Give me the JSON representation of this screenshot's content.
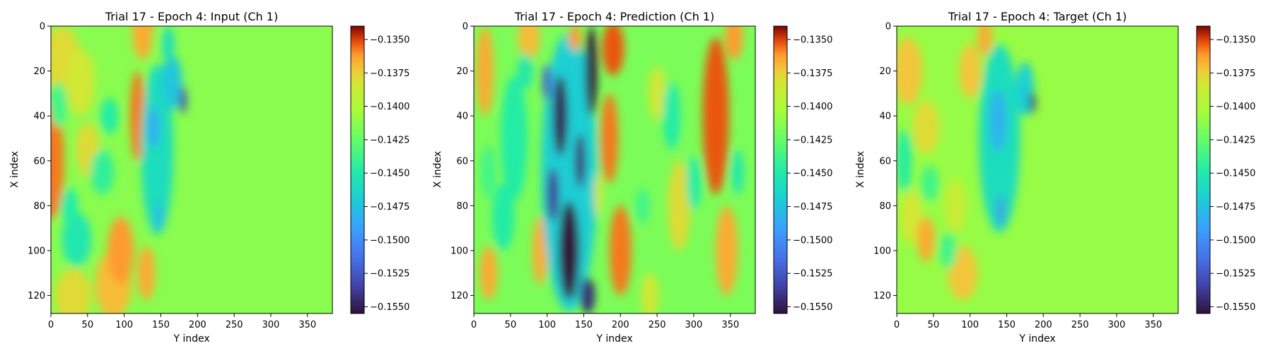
{
  "chart_data": [
    {
      "type": "heatmap",
      "title": "Trial 17 - Epoch 4: Input (Ch 1)",
      "xlabel": "Y index",
      "ylabel": "X index",
      "xticks": [
        0,
        50,
        100,
        150,
        200,
        250,
        300,
        350
      ],
      "yticks": [
        0,
        20,
        40,
        60,
        80,
        100,
        120
      ],
      "xlim": [
        0,
        384
      ],
      "ylim": [
        128,
        0
      ],
      "colormap": "turbo",
      "colorbar": {
        "ticks": [
          "−0.1350",
          "−0.1375",
          "−0.1400",
          "−0.1425",
          "−0.1450",
          "−0.1475",
          "−0.1500",
          "−0.1525",
          "−0.1550"
        ],
        "range": [
          -0.1555,
          -0.134
        ]
      },
      "background_level": 0.34,
      "features": [
        {
          "x": 0,
          "y": 60,
          "rx": 18,
          "ry": 26,
          "level": 0.08
        },
        {
          "x": 15,
          "y": 15,
          "rx": 25,
          "ry": 15,
          "level": 0.18
        },
        {
          "x": 40,
          "y": 25,
          "rx": 20,
          "ry": 15,
          "level": 0.2
        },
        {
          "x": 50,
          "y": 55,
          "rx": 16,
          "ry": 12,
          "level": 0.18
        },
        {
          "x": 30,
          "y": 120,
          "rx": 25,
          "ry": 12,
          "level": 0.18
        },
        {
          "x": 85,
          "y": 115,
          "rx": 25,
          "ry": 15,
          "level": 0.14
        },
        {
          "x": 95,
          "y": 100,
          "rx": 18,
          "ry": 15,
          "level": 0.1
        },
        {
          "x": 118,
          "y": 40,
          "rx": 10,
          "ry": 20,
          "level": 0.08
        },
        {
          "x": 125,
          "y": 0,
          "rx": 14,
          "ry": 15,
          "level": 0.12
        },
        {
          "x": 130,
          "y": 110,
          "rx": 12,
          "ry": 12,
          "level": 0.12
        },
        {
          "x": 35,
          "y": 95,
          "rx": 20,
          "ry": 12,
          "level": 0.52
        },
        {
          "x": 25,
          "y": 80,
          "rx": 12,
          "ry": 8,
          "level": 0.5
        },
        {
          "x": 70,
          "y": 65,
          "rx": 16,
          "ry": 10,
          "level": 0.48
        },
        {
          "x": 80,
          "y": 40,
          "rx": 12,
          "ry": 8,
          "level": 0.5
        },
        {
          "x": 10,
          "y": 35,
          "rx": 12,
          "ry": 10,
          "level": 0.45
        },
        {
          "x": 145,
          "y": 55,
          "rx": 22,
          "ry": 38,
          "level": 0.55
        },
        {
          "x": 140,
          "y": 45,
          "rx": 8,
          "ry": 9,
          "level": 0.68
        },
        {
          "x": 165,
          "y": 25,
          "rx": 14,
          "ry": 12,
          "level": 0.62
        },
        {
          "x": 160,
          "y": 8,
          "rx": 8,
          "ry": 8,
          "level": 0.55
        },
        {
          "x": 180,
          "y": 33,
          "rx": 5,
          "ry": 6,
          "level": 0.88
        },
        {
          "x": 148,
          "y": 85,
          "rx": 4,
          "ry": 6,
          "level": 0.68
        }
      ]
    },
    {
      "type": "heatmap",
      "title": "Trial 17 - Epoch 4: Prediction (Ch 1)",
      "xlabel": "Y index",
      "ylabel": "X index",
      "xticks": [
        0,
        50,
        100,
        150,
        200,
        250,
        300,
        350
      ],
      "yticks": [
        0,
        20,
        40,
        60,
        80,
        100,
        120
      ],
      "xlim": [
        0,
        384
      ],
      "ylim": [
        128,
        0
      ],
      "colormap": "turbo",
      "colorbar": {
        "ticks": [
          "−0.1350",
          "−0.1375",
          "−0.1400",
          "−0.1425",
          "−0.1450",
          "−0.1475",
          "−0.1500",
          "−0.1525",
          "−0.1550"
        ],
        "range": [
          -0.1555,
          -0.134
        ]
      },
      "background_level": 0.36,
      "features": [
        {
          "x": 190,
          "y": 10,
          "rx": 15,
          "ry": 12,
          "level": 0.06
        },
        {
          "x": 185,
          "y": 50,
          "rx": 12,
          "ry": 20,
          "level": 0.08
        },
        {
          "x": 200,
          "y": 100,
          "rx": 15,
          "ry": 20,
          "level": 0.08
        },
        {
          "x": 15,
          "y": 20,
          "rx": 12,
          "ry": 20,
          "level": 0.12
        },
        {
          "x": 20,
          "y": 110,
          "rx": 12,
          "ry": 12,
          "level": 0.12
        },
        {
          "x": 75,
          "y": 5,
          "rx": 15,
          "ry": 10,
          "level": 0.14
        },
        {
          "x": 90,
          "y": 100,
          "rx": 10,
          "ry": 15,
          "level": 0.12
        },
        {
          "x": 330,
          "y": 40,
          "rx": 18,
          "ry": 35,
          "level": 0.06
        },
        {
          "x": 345,
          "y": 100,
          "rx": 15,
          "ry": 20,
          "level": 0.12
        },
        {
          "x": 355,
          "y": 5,
          "rx": 12,
          "ry": 10,
          "level": 0.1
        },
        {
          "x": 280,
          "y": 80,
          "rx": 15,
          "ry": 20,
          "level": 0.18
        },
        {
          "x": 250,
          "y": 30,
          "rx": 12,
          "ry": 12,
          "level": 0.2
        },
        {
          "x": 240,
          "y": 120,
          "rx": 12,
          "ry": 10,
          "level": 0.2
        },
        {
          "x": 270,
          "y": 40,
          "rx": 12,
          "ry": 15,
          "level": 0.5
        },
        {
          "x": 300,
          "y": 70,
          "rx": 10,
          "ry": 12,
          "level": 0.5
        },
        {
          "x": 230,
          "y": 80,
          "rx": 10,
          "ry": 8,
          "level": 0.45
        },
        {
          "x": 360,
          "y": 65,
          "rx": 8,
          "ry": 10,
          "level": 0.52
        },
        {
          "x": 55,
          "y": 50,
          "rx": 18,
          "ry": 28,
          "level": 0.5
        },
        {
          "x": 40,
          "y": 85,
          "rx": 15,
          "ry": 15,
          "level": 0.5
        },
        {
          "x": 70,
          "y": 20,
          "rx": 10,
          "ry": 8,
          "level": 0.52
        },
        {
          "x": 20,
          "y": 65,
          "rx": 10,
          "ry": 12,
          "level": 0.45
        },
        {
          "x": 130,
          "y": 65,
          "rx": 38,
          "ry": 62,
          "level": 0.6
        },
        {
          "x": 118,
          "y": 40,
          "rx": 10,
          "ry": 18,
          "level": 0.98
        },
        {
          "x": 130,
          "y": 100,
          "rx": 14,
          "ry": 22,
          "level": 1.0
        },
        {
          "x": 160,
          "y": 20,
          "rx": 8,
          "ry": 20,
          "level": 1.0
        },
        {
          "x": 145,
          "y": 60,
          "rx": 7,
          "ry": 12,
          "level": 0.95
        },
        {
          "x": 108,
          "y": 75,
          "rx": 8,
          "ry": 12,
          "level": 0.92
        },
        {
          "x": 155,
          "y": 120,
          "rx": 10,
          "ry": 8,
          "level": 0.95
        },
        {
          "x": 100,
          "y": 25,
          "rx": 6,
          "ry": 8,
          "level": 0.85
        },
        {
          "x": 170,
          "y": 75,
          "rx": 6,
          "ry": 10,
          "level": 0.2
        },
        {
          "x": 138,
          "y": 5,
          "rx": 8,
          "ry": 6,
          "level": 0.1
        }
      ]
    },
    {
      "type": "heatmap",
      "title": "Trial 17 - Epoch 4: Target (Ch 1)",
      "xlabel": "Y index",
      "ylabel": "X index",
      "xticks": [
        0,
        50,
        100,
        150,
        200,
        250,
        300,
        350
      ],
      "yticks": [
        0,
        20,
        40,
        60,
        80,
        100,
        120
      ],
      "xlim": [
        0,
        384
      ],
      "ylim": [
        128,
        0
      ],
      "colormap": "turbo",
      "colorbar": {
        "ticks": [
          "−0.1350",
          "−0.1375",
          "−0.1400",
          "−0.1425",
          "−0.1450",
          "−0.1475",
          "−0.1500",
          "−0.1525",
          "−0.1550"
        ],
        "range": [
          -0.1555,
          -0.134
        ]
      },
      "background_level": 0.32,
      "features": [
        {
          "x": 15,
          "y": 20,
          "rx": 20,
          "ry": 15,
          "level": 0.15
        },
        {
          "x": 40,
          "y": 45,
          "rx": 18,
          "ry": 12,
          "level": 0.18
        },
        {
          "x": 20,
          "y": 85,
          "rx": 15,
          "ry": 12,
          "level": 0.2
        },
        {
          "x": 40,
          "y": 95,
          "rx": 12,
          "ry": 10,
          "level": 0.12
        },
        {
          "x": 90,
          "y": 110,
          "rx": 20,
          "ry": 12,
          "level": 0.15
        },
        {
          "x": 100,
          "y": 20,
          "rx": 15,
          "ry": 12,
          "level": 0.15
        },
        {
          "x": 80,
          "y": 80,
          "rx": 15,
          "ry": 12,
          "level": 0.22
        },
        {
          "x": 120,
          "y": 5,
          "rx": 10,
          "ry": 8,
          "level": 0.12
        },
        {
          "x": 10,
          "y": 60,
          "rx": 10,
          "ry": 14,
          "level": 0.5
        },
        {
          "x": 45,
          "y": 70,
          "rx": 12,
          "ry": 8,
          "level": 0.45
        },
        {
          "x": 70,
          "y": 100,
          "rx": 12,
          "ry": 8,
          "level": 0.45
        },
        {
          "x": 140,
          "y": 50,
          "rx": 28,
          "ry": 42,
          "level": 0.55
        },
        {
          "x": 138,
          "y": 42,
          "rx": 12,
          "ry": 14,
          "level": 0.66
        },
        {
          "x": 175,
          "y": 28,
          "rx": 12,
          "ry": 12,
          "level": 0.6
        },
        {
          "x": 185,
          "y": 34,
          "rx": 4,
          "ry": 5,
          "level": 0.95
        },
        {
          "x": 142,
          "y": 82,
          "rx": 4,
          "ry": 7,
          "level": 0.78
        }
      ]
    }
  ]
}
